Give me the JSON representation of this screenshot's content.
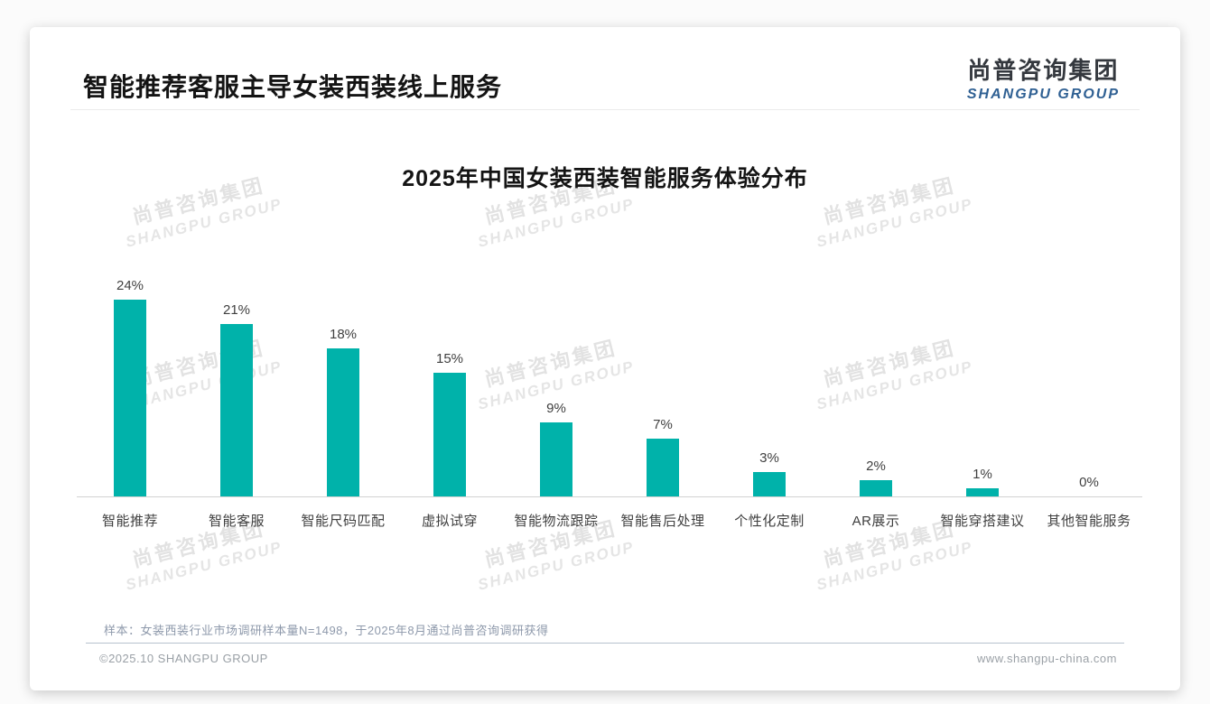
{
  "page": {
    "title": "智能推荐客服主导女装西装线上服务",
    "logo": {
      "cn": "尚普咨询集团",
      "en": "SHANGPU GROUP"
    },
    "watermark": {
      "cn": "尚普咨询集团",
      "en": "SHANGPU GROUP"
    },
    "note": "样本：女装西装行业市场调研样本量N=1498，于2025年8月通过尚普咨询调研获得",
    "footer": {
      "left": "©2025.10 SHANGPU GROUP",
      "right": "www.shangpu-china.com"
    }
  },
  "chart_data": {
    "type": "bar",
    "title": "2025年中国女装西装智能服务体验分布",
    "categories": [
      "智能推荐",
      "智能客服",
      "智能尺码匹配",
      "虚拟试穿",
      "智能物流跟踪",
      "智能售后处理",
      "个性化定制",
      "AR展示",
      "智能穿搭建议",
      "其他智能服务"
    ],
    "values": [
      24,
      21,
      18,
      15,
      9,
      7,
      3,
      2,
      1,
      0
    ],
    "data_labels": [
      "24%",
      "21%",
      "18%",
      "15%",
      "9%",
      "7%",
      "3%",
      "2%",
      "1%",
      "0%"
    ],
    "unit": "%",
    "bar_color": "#00b2aa",
    "label_color": "#3f3f3f",
    "ylim": [
      0,
      28
    ],
    "grid": false,
    "legend": false,
    "xlabel": "",
    "ylabel": ""
  }
}
